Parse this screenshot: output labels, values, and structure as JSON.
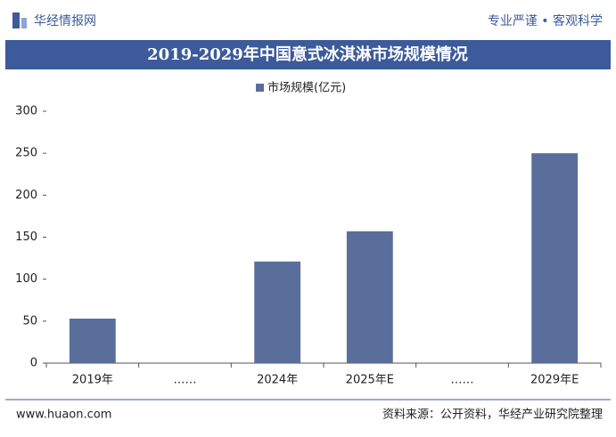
{
  "header": {
    "logo": "华经情报网",
    "slogan": "专业严谨 • 客观科学"
  },
  "chart_data": {
    "type": "bar",
    "title": "2019-2029年中国意式冰淇淋市场规模情况",
    "categories": [
      "2019年",
      "……",
      "2024年",
      "2025年E",
      "……",
      "2029年E"
    ],
    "series": [
      {
        "name": "市场规模(亿元)",
        "color": "#5a6e9c",
        "values": [
          53,
          null,
          121,
          157,
          null,
          250
        ]
      }
    ],
    "ylim": [
      0,
      300
    ],
    "yticks": [
      0,
      50,
      100,
      150,
      200,
      250,
      300
    ],
    "grid": false
  },
  "footer": {
    "website": "www.huaon.com",
    "source": "资料来源：公开资料，华经产业研究院整理"
  }
}
